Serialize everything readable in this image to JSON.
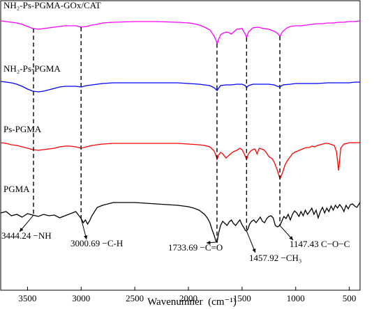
{
  "chart_data": {
    "type": "line",
    "title": "",
    "xlabel": "Wavenumner  (cm⁻¹)",
    "ylabel": "",
    "xlim": [
      3750,
      400
    ],
    "x_reversed": true,
    "x_ticks": [
      3500,
      3000,
      2500,
      2000,
      1500,
      1000,
      500
    ],
    "y_ticks_shown": false,
    "grid": false,
    "legend": "none",
    "series": [
      {
        "name": "NH₂-Ps-PGMA-GOx/CAT",
        "color": "#ff00ff",
        "x": [
          3750,
          3700,
          3650,
          3600,
          3550,
          3500,
          3450,
          3400,
          3350,
          3300,
          3250,
          3200,
          3150,
          3100,
          3050,
          3000,
          2950,
          2900,
          2850,
          2800,
          2700,
          2500,
          2300,
          2100,
          2000,
          1950,
          1900,
          1850,
          1800,
          1760,
          1740,
          1733,
          1720,
          1700,
          1680,
          1650,
          1620,
          1600,
          1550,
          1500,
          1470,
          1458,
          1440,
          1400,
          1350,
          1300,
          1250,
          1200,
          1170,
          1147,
          1120,
          1080,
          1050,
          1000,
          950,
          900,
          850,
          800,
          750,
          700,
          650,
          600,
          550,
          500,
          450,
          400
        ],
        "y": [
          2,
          3,
          4,
          5,
          7,
          10,
          13,
          14,
          13,
          12,
          11,
          10,
          9,
          9,
          9,
          11,
          10,
          8,
          7,
          5,
          4,
          3,
          3,
          4,
          5,
          6,
          8,
          11,
          15,
          24,
          31,
          35,
          29,
          22,
          20,
          18,
          19,
          21,
          14,
          13,
          21,
          26,
          18,
          12,
          11,
          13,
          14,
          17,
          20,
          24,
          17,
          12,
          10,
          9,
          9,
          8,
          7,
          6,
          6,
          5,
          5,
          4,
          4,
          3,
          3,
          2
        ]
      },
      {
        "name": "NH₂-Ps-PGMA",
        "color": "#0000ff",
        "x": [
          3750,
          3700,
          3650,
          3600,
          3550,
          3500,
          3450,
          3400,
          3350,
          3300,
          3250,
          3200,
          3150,
          3100,
          3050,
          3000,
          2950,
          2900,
          2850,
          2800,
          2700,
          2500,
          2300,
          2100,
          2000,
          1900,
          1850,
          1800,
          1760,
          1740,
          1733,
          1720,
          1700,
          1650,
          1600,
          1550,
          1500,
          1470,
          1458,
          1440,
          1400,
          1300,
          1250,
          1200,
          1170,
          1147,
          1120,
          1050,
          1000,
          900,
          800,
          700,
          600,
          500,
          450,
          400
        ],
        "y": [
          0,
          1,
          2,
          4,
          7,
          11,
          14,
          15,
          14,
          12,
          10,
          8,
          7,
          7,
          7,
          8,
          6,
          5,
          4,
          3,
          2,
          2,
          2,
          2,
          3,
          4,
          5,
          6,
          9,
          12,
          13,
          10,
          6,
          5,
          5,
          4,
          4,
          6,
          9,
          6,
          4,
          4,
          4,
          5,
          7,
          8,
          5,
          4,
          3,
          3,
          3,
          2,
          2,
          2,
          1,
          1
        ]
      },
      {
        "name": "Ps-PGMA",
        "color": "#ff0000",
        "x": [
          3750,
          3700,
          3650,
          3600,
          3550,
          3500,
          3450,
          3400,
          3350,
          3300,
          3250,
          3200,
          3150,
          3100,
          3050,
          3000,
          2950,
          2900,
          2850,
          2800,
          2700,
          2500,
          2300,
          2100,
          2000,
          1900,
          1850,
          1800,
          1760,
          1740,
          1733,
          1720,
          1700,
          1680,
          1650,
          1620,
          1600,
          1580,
          1550,
          1520,
          1500,
          1480,
          1458,
          1440,
          1420,
          1400,
          1380,
          1360,
          1340,
          1320,
          1300,
          1280,
          1250,
          1220,
          1200,
          1170,
          1147,
          1120,
          1100,
          1070,
          1050,
          1030,
          1000,
          980,
          950,
          920,
          900,
          870,
          850,
          820,
          800,
          770,
          750,
          720,
          700,
          680,
          660,
          640,
          620,
          600,
          580,
          550,
          520,
          500,
          450,
          400
        ],
        "y": [
          2,
          3,
          5,
          6,
          8,
          10,
          12,
          13,
          12,
          11,
          10,
          8,
          7,
          7,
          8,
          10,
          8,
          6,
          5,
          4,
          3,
          3,
          3,
          3,
          4,
          5,
          6,
          8,
          14,
          22,
          26,
          20,
          16,
          18,
          24,
          20,
          17,
          15,
          13,
          10,
          12,
          18,
          26,
          18,
          14,
          12,
          11,
          18,
          10,
          11,
          12,
          15,
          22,
          25,
          30,
          42,
          54,
          44,
          34,
          26,
          22,
          18,
          15,
          14,
          12,
          10,
          9,
          9,
          7,
          8,
          6,
          5,
          4,
          3,
          3,
          4,
          5,
          6,
          15,
          42,
          10,
          4,
          3,
          2,
          2,
          2
        ]
      },
      {
        "name": "PGMA",
        "color": "#000000",
        "x": [
          3750,
          3700,
          3650,
          3600,
          3550,
          3500,
          3450,
          3400,
          3350,
          3300,
          3250,
          3200,
          3150,
          3100,
          3050,
          3000,
          2980,
          2960,
          2940,
          2920,
          2900,
          2850,
          2800,
          2750,
          2700,
          2600,
          2500,
          2400,
          2300,
          2200,
          2100,
          2000,
          1950,
          1900,
          1850,
          1820,
          1800,
          1780,
          1760,
          1745,
          1733,
          1720,
          1700,
          1680,
          1660,
          1640,
          1620,
          1600,
          1580,
          1560,
          1540,
          1520,
          1500,
          1480,
          1470,
          1458,
          1445,
          1430,
          1410,
          1390,
          1370,
          1350,
          1330,
          1310,
          1290,
          1270,
          1250,
          1230,
          1210,
          1190,
          1170,
          1147,
          1130,
          1110,
          1090,
          1070,
          1050,
          1030,
          1010,
          990,
          970,
          950,
          930,
          910,
          890,
          870,
          850,
          830,
          810,
          790,
          770,
          750,
          730,
          710,
          690,
          670,
          650,
          630,
          610,
          590,
          570,
          550,
          530,
          510,
          490,
          470,
          450,
          430,
          400
        ],
        "y": [
          20,
          18,
          24,
          22,
          26,
          21,
          23,
          25,
          22,
          24,
          23,
          27,
          24,
          21,
          18,
          28,
          34,
          30,
          36,
          31,
          24,
          12,
          9,
          7,
          5,
          5,
          5,
          6,
          7,
          8,
          9,
          11,
          13,
          16,
          22,
          28,
          34,
          44,
          52,
          60,
          62,
          50,
          38,
          32,
          35,
          38,
          33,
          30,
          35,
          38,
          34,
          30,
          37,
          42,
          45,
          46,
          43,
          36,
          32,
          30,
          34,
          30,
          26,
          32,
          34,
          28,
          25,
          24,
          27,
          38,
          40,
          38,
          32,
          25,
          28,
          22,
          30,
          22,
          17,
          20,
          25,
          18,
          24,
          16,
          22,
          18,
          13,
          22,
          16,
          27,
          18,
          12,
          20,
          13,
          18,
          10,
          16,
          9,
          13,
          8,
          12,
          18,
          9,
          14,
          8,
          7,
          10,
          12,
          5
        ]
      }
    ],
    "annotations": [
      {
        "text": "3444.24 −NH",
        "x": 3444.24
      },
      {
        "text": "3000.69 −C-H",
        "x": 3000.69
      },
      {
        "text": "1733.69 −C=O",
        "x": 1733.69
      },
      {
        "text": "1457.92 −CH₃",
        "x": 1457.92
      },
      {
        "text": "1147.43 C−O−C",
        "x": 1147.43
      }
    ]
  }
}
